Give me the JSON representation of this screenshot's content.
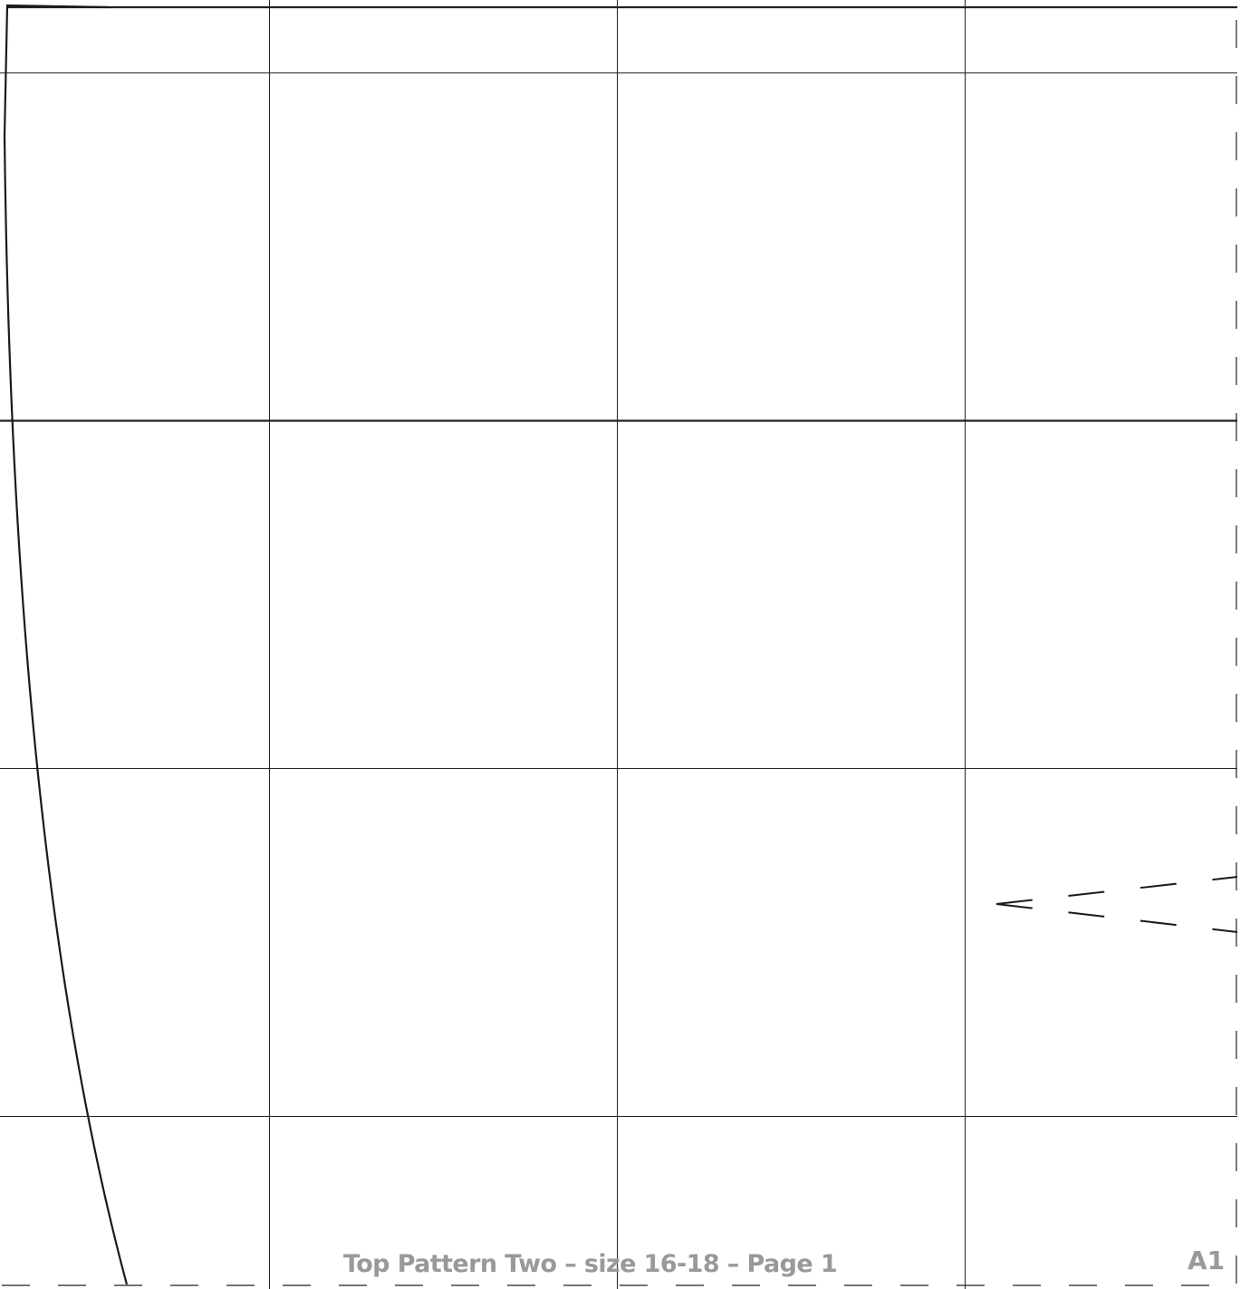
{
  "document": {
    "title": "Top Pattern Two – size 16-18 – Page 1",
    "page_code": "A1",
    "colors": {
      "line": "#222222",
      "text": "#999999",
      "background": "#ffffff"
    },
    "elements": {
      "grid": "one-inch alignment grid",
      "pattern_edge": "curved cutting line",
      "dart": "dashed dart lines",
      "trim_border": "dashed trim lines"
    }
  }
}
